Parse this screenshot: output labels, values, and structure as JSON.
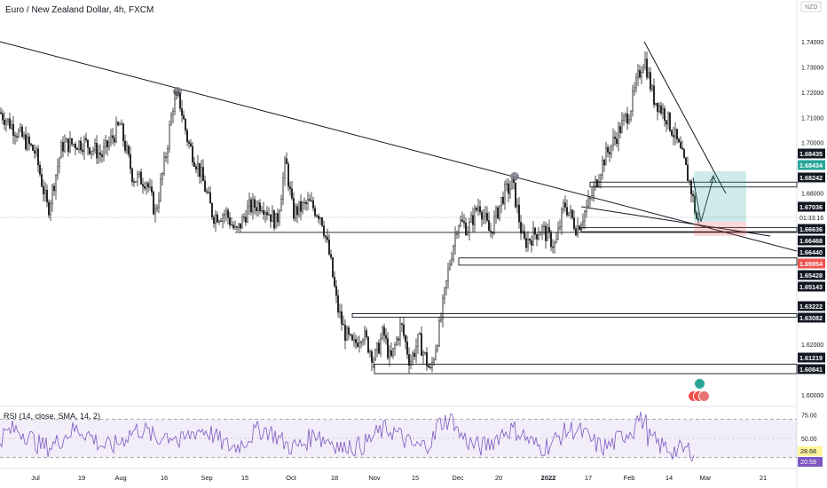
{
  "header": {
    "title": "Euro / New Zealand Dollar, 4h, FXCM",
    "currency": "NZD"
  },
  "chart_data": [
    {
      "type": "candlestick",
      "title": "Euro / New Zealand Dollar, 4h, FXCM",
      "ylim": [
        1.5965,
        1.7495
      ],
      "y_ticks": [
        1.74,
        1.73,
        1.72,
        1.71,
        1.7,
        1.68,
        1.62,
        1.61,
        1.6
      ],
      "x_ticks": [
        "Jul",
        "19",
        "Aug",
        "16",
        "Sep",
        "15",
        "Oct",
        "18",
        "Nov",
        "15",
        "Dec",
        "20",
        "2022",
        "17",
        "Feb",
        "14",
        "Mar",
        "21"
      ],
      "last_price": 1.67036,
      "countdown": "01:33:16",
      "price_path": [
        [
          0,
          1.712
        ],
        [
          20,
          1.704
        ],
        [
          40,
          1.696
        ],
        [
          54,
          1.673
        ],
        [
          70,
          1.699
        ],
        [
          95,
          1.7
        ],
        [
          115,
          1.695
        ],
        [
          135,
          1.707
        ],
        [
          150,
          1.686
        ],
        [
          165,
          1.685
        ],
        [
          175,
          1.672
        ],
        [
          186,
          1.693
        ],
        [
          195,
          1.715
        ],
        [
          202,
          1.717
        ],
        [
          212,
          1.7
        ],
        [
          226,
          1.688
        ],
        [
          240,
          1.671
        ],
        [
          255,
          1.672
        ],
        [
          266,
          1.664
        ],
        [
          280,
          1.674
        ],
        [
          295,
          1.676
        ],
        [
          312,
          1.668
        ],
        [
          322,
          1.693
        ],
        [
          330,
          1.672
        ],
        [
          348,
          1.676
        ],
        [
          362,
          1.671
        ],
        [
          372,
          1.654
        ],
        [
          380,
          1.635
        ],
        [
          388,
          1.625
        ],
        [
          398,
          1.619
        ],
        [
          408,
          1.625
        ],
        [
          422,
          1.614
        ],
        [
          432,
          1.625
        ],
        [
          440,
          1.613
        ],
        [
          452,
          1.628
        ],
        [
          462,
          1.613
        ],
        [
          472,
          1.622
        ],
        [
          485,
          1.609
        ],
        [
          496,
          1.628
        ],
        [
          506,
          1.651
        ],
        [
          516,
          1.669
        ],
        [
          528,
          1.666
        ],
        [
          540,
          1.676
        ],
        [
          552,
          1.664
        ],
        [
          568,
          1.68
        ],
        [
          578,
          1.683
        ],
        [
          590,
          1.66
        ],
        [
          610,
          1.666
        ],
        [
          626,
          1.659
        ],
        [
          636,
          1.676
        ],
        [
          650,
          1.666
        ],
        [
          665,
          1.677
        ],
        [
          680,
          1.693
        ],
        [
          695,
          1.703
        ],
        [
          710,
          1.713
        ],
        [
          720,
          1.727
        ],
        [
          726,
          1.734
        ],
        [
          736,
          1.718
        ],
        [
          750,
          1.711
        ],
        [
          760,
          1.703
        ],
        [
          770,
          1.693
        ],
        [
          778,
          1.683
        ],
        [
          786,
          1.668
        ]
      ],
      "drawn_levels": [
        {
          "label": "1.68242",
          "value": 1.68242
        },
        {
          "label": "1.66636",
          "value": 1.66636
        },
        {
          "label": "1.66468",
          "value": 1.66468
        },
        {
          "label": "1.65428",
          "value": 1.65428
        },
        {
          "label": "1.65143",
          "value": 1.65143
        },
        {
          "label": "1.63222",
          "value": 1.63222
        },
        {
          "label": "1.63082",
          "value": 1.63082
        },
        {
          "label": "1.61219",
          "value": 1.61219
        },
        {
          "label": "1.60841",
          "value": 1.60841
        }
      ],
      "position_tool": {
        "target": {
          "label": "1.68434",
          "value": 1.68434,
          "color": "#26a69a"
        },
        "entry": {
          "label": "1.66440",
          "value": 1.6644
        },
        "stop": {
          "label": "1.65954",
          "value": 1.65954,
          "color": "#ef5350"
        },
        "top_value": 1.68435
      }
    },
    {
      "type": "line",
      "title": "RSI (14, close, SMA, 14, 2)",
      "ylim": [
        20,
        80
      ],
      "y_ticks": [
        75.0,
        50.0
      ],
      "band": [
        30,
        70
      ],
      "rsi_value": "20.59",
      "sma_value": "28.68",
      "line_color": "#7e57c2"
    }
  ]
}
